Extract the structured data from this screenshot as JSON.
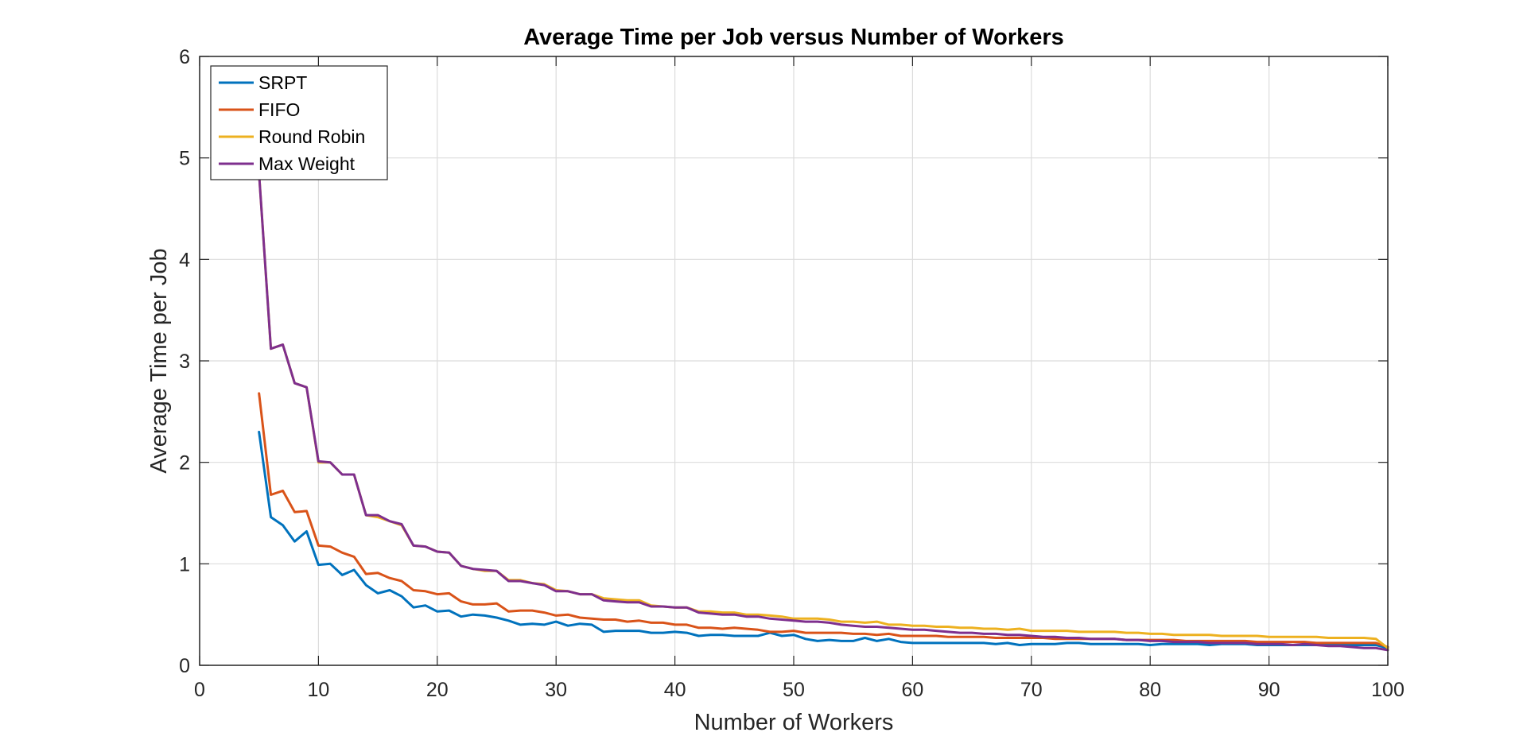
{
  "chart_data": {
    "type": "line",
    "title": "Average Time per Job versus Number of Workers",
    "xlabel": "Number of Workers",
    "ylabel": "Average Time per Job",
    "xlim": [
      0,
      100
    ],
    "ylim": [
      0,
      6
    ],
    "xticks": [
      "0",
      "10",
      "20",
      "30",
      "40",
      "50",
      "60",
      "70",
      "80",
      "90",
      "100"
    ],
    "yticks": [
      "0",
      "1",
      "2",
      "3",
      "4",
      "5",
      "6"
    ],
    "grid": true,
    "legend_position": "top-left",
    "x": [
      5,
      6,
      7,
      8,
      9,
      10,
      11,
      12,
      13,
      14,
      15,
      16,
      17,
      18,
      19,
      20,
      21,
      22,
      23,
      24,
      25,
      26,
      27,
      28,
      29,
      30,
      31,
      32,
      33,
      34,
      35,
      36,
      37,
      38,
      39,
      40,
      41,
      42,
      43,
      44,
      45,
      46,
      47,
      48,
      49,
      50,
      51,
      52,
      53,
      54,
      55,
      56,
      57,
      58,
      59,
      60,
      61,
      62,
      63,
      64,
      65,
      66,
      67,
      68,
      69,
      70,
      71,
      72,
      73,
      74,
      75,
      76,
      77,
      78,
      79,
      80,
      81,
      82,
      83,
      84,
      85,
      86,
      87,
      88,
      89,
      90,
      91,
      92,
      93,
      94,
      95,
      96,
      97,
      98,
      99,
      100
    ],
    "series": [
      {
        "name": "SRPT",
        "color": "#0072BD",
        "values": [
          2.3,
          1.46,
          1.38,
          1.22,
          1.32,
          0.99,
          1.0,
          0.89,
          0.94,
          0.79,
          0.71,
          0.74,
          0.68,
          0.57,
          0.59,
          0.53,
          0.54,
          0.48,
          0.5,
          0.49,
          0.47,
          0.44,
          0.4,
          0.41,
          0.4,
          0.43,
          0.39,
          0.41,
          0.4,
          0.33,
          0.34,
          0.34,
          0.34,
          0.32,
          0.32,
          0.33,
          0.32,
          0.29,
          0.3,
          0.3,
          0.29,
          0.29,
          0.29,
          0.32,
          0.29,
          0.3,
          0.26,
          0.24,
          0.25,
          0.24,
          0.24,
          0.27,
          0.24,
          0.26,
          0.23,
          0.22,
          0.22,
          0.22,
          0.22,
          0.22,
          0.22,
          0.22,
          0.21,
          0.22,
          0.2,
          0.21,
          0.21,
          0.21,
          0.22,
          0.22,
          0.21,
          0.21,
          0.21,
          0.21,
          0.21,
          0.2,
          0.21,
          0.21,
          0.21,
          0.21,
          0.2,
          0.21,
          0.21,
          0.21,
          0.2,
          0.2,
          0.2,
          0.2,
          0.2,
          0.2,
          0.2,
          0.2,
          0.2,
          0.2,
          0.2,
          0.17
        ]
      },
      {
        "name": "FIFO",
        "color": "#D95319",
        "values": [
          2.68,
          1.68,
          1.72,
          1.51,
          1.52,
          1.18,
          1.17,
          1.11,
          1.07,
          0.9,
          0.91,
          0.86,
          0.83,
          0.74,
          0.73,
          0.7,
          0.71,
          0.63,
          0.6,
          0.6,
          0.61,
          0.53,
          0.54,
          0.54,
          0.52,
          0.49,
          0.5,
          0.47,
          0.46,
          0.45,
          0.45,
          0.43,
          0.44,
          0.42,
          0.42,
          0.4,
          0.4,
          0.37,
          0.37,
          0.36,
          0.37,
          0.36,
          0.35,
          0.33,
          0.33,
          0.34,
          0.32,
          0.32,
          0.32,
          0.32,
          0.31,
          0.31,
          0.3,
          0.31,
          0.29,
          0.29,
          0.29,
          0.29,
          0.28,
          0.28,
          0.28,
          0.28,
          0.27,
          0.27,
          0.27,
          0.27,
          0.27,
          0.26,
          0.26,
          0.26,
          0.26,
          0.26,
          0.26,
          0.25,
          0.25,
          0.25,
          0.25,
          0.25,
          0.24,
          0.24,
          0.24,
          0.24,
          0.24,
          0.24,
          0.23,
          0.23,
          0.23,
          0.23,
          0.23,
          0.22,
          0.22,
          0.22,
          0.22,
          0.22,
          0.22,
          0.18
        ]
      },
      {
        "name": "Round Robin",
        "color": "#EDB120",
        "values": [
          4.85,
          3.12,
          3.16,
          2.78,
          2.74,
          2.0,
          2.0,
          1.88,
          1.88,
          1.48,
          1.46,
          1.42,
          1.38,
          1.18,
          1.17,
          1.12,
          1.11,
          0.98,
          0.95,
          0.93,
          0.93,
          0.84,
          0.84,
          0.81,
          0.8,
          0.74,
          0.73,
          0.7,
          0.7,
          0.66,
          0.65,
          0.64,
          0.64,
          0.59,
          0.58,
          0.57,
          0.57,
          0.53,
          0.53,
          0.52,
          0.52,
          0.5,
          0.5,
          0.49,
          0.48,
          0.46,
          0.46,
          0.46,
          0.45,
          0.43,
          0.43,
          0.42,
          0.43,
          0.4,
          0.4,
          0.39,
          0.39,
          0.38,
          0.38,
          0.37,
          0.37,
          0.36,
          0.36,
          0.35,
          0.36,
          0.34,
          0.34,
          0.34,
          0.34,
          0.33,
          0.33,
          0.33,
          0.33,
          0.32,
          0.32,
          0.31,
          0.31,
          0.3,
          0.3,
          0.3,
          0.3,
          0.29,
          0.29,
          0.29,
          0.29,
          0.28,
          0.28,
          0.28,
          0.28,
          0.28,
          0.27,
          0.27,
          0.27,
          0.27,
          0.26,
          0.17
        ]
      },
      {
        "name": "Max Weight",
        "color": "#7E2F8E",
        "values": [
          4.85,
          3.12,
          3.16,
          2.78,
          2.74,
          2.01,
          2.0,
          1.88,
          1.88,
          1.48,
          1.48,
          1.42,
          1.39,
          1.18,
          1.17,
          1.12,
          1.11,
          0.98,
          0.95,
          0.94,
          0.93,
          0.83,
          0.83,
          0.81,
          0.79,
          0.73,
          0.73,
          0.7,
          0.7,
          0.64,
          0.63,
          0.62,
          0.62,
          0.58,
          0.58,
          0.57,
          0.57,
          0.52,
          0.51,
          0.5,
          0.5,
          0.48,
          0.48,
          0.46,
          0.45,
          0.44,
          0.43,
          0.43,
          0.42,
          0.4,
          0.39,
          0.38,
          0.38,
          0.37,
          0.36,
          0.35,
          0.35,
          0.34,
          0.33,
          0.32,
          0.32,
          0.31,
          0.31,
          0.3,
          0.3,
          0.29,
          0.28,
          0.28,
          0.27,
          0.27,
          0.26,
          0.26,
          0.26,
          0.25,
          0.25,
          0.24,
          0.24,
          0.23,
          0.23,
          0.23,
          0.22,
          0.22,
          0.22,
          0.22,
          0.21,
          0.21,
          0.21,
          0.2,
          0.21,
          0.2,
          0.19,
          0.19,
          0.18,
          0.17,
          0.17,
          0.15
        ]
      }
    ]
  }
}
